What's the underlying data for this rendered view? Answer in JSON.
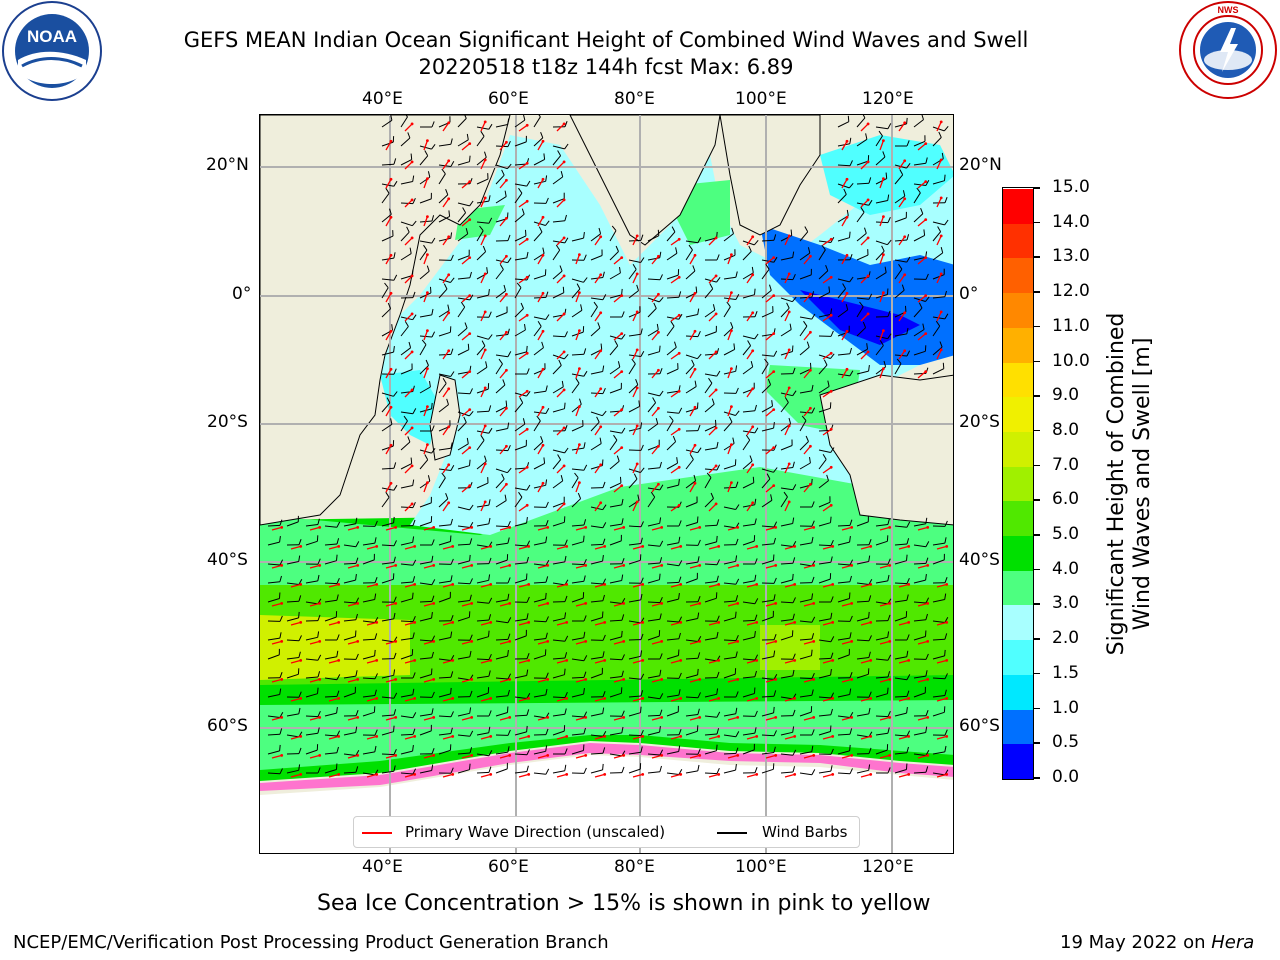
{
  "header": {
    "title_line1": "GEFS MEAN Indian Ocean Significant Height of Combined Wind Waves and Swell",
    "title_line2": "20220518 t18z 144h fcst   Max: 6.89"
  },
  "logos": {
    "left": {
      "text": "NOAA",
      "icon": "noaa-logo-icon"
    },
    "right": {
      "ring_text": "NATIONAL WEATHER SERVICE",
      "icon": "nws-logo-icon"
    }
  },
  "map": {
    "lon_labels": [
      "40°E",
      "60°E",
      "80°E",
      "100°E",
      "120°E"
    ],
    "lat_labels": [
      "20°N",
      "0°",
      "20°S",
      "40°S",
      "60°S"
    ],
    "grid": true
  },
  "legend": {
    "wave_direction": "Primary Wave Direction (unscaled)",
    "wind_barbs": "Wind Barbs",
    "wave_color": "#ff0000",
    "barb_color": "#000000"
  },
  "colorbar": {
    "label_line1": "Significant Height of Combined",
    "label_line2": "Wind Waves and Swell [m]",
    "ticks": [
      "0.0",
      "0.5",
      "1.0",
      "1.5",
      "2.0",
      "3.0",
      "4.0",
      "5.0",
      "6.0",
      "7.0",
      "8.0",
      "9.0",
      "10.0",
      "11.0",
      "12.0",
      "13.0",
      "14.0",
      "15.0"
    ],
    "colors": [
      "#0000ff",
      "#0070ff",
      "#00e8ff",
      "#50ffff",
      "#a8ffff",
      "#4dff80",
      "#00e000",
      "#50e800",
      "#a0f000",
      "#d0f000",
      "#f0f000",
      "#ffe000",
      "#ffb000",
      "#ff8800",
      "#ff6000",
      "#ff3000",
      "#ff0000"
    ]
  },
  "footer": {
    "sea_ice_note": "Sea Ice Concentration > 15% is shown in pink to yellow",
    "branch": "NCEP/EMC/Verification Post Processing Product Generation Branch",
    "date_prefix": "19 May 2022 on ",
    "host": "Hera"
  }
}
